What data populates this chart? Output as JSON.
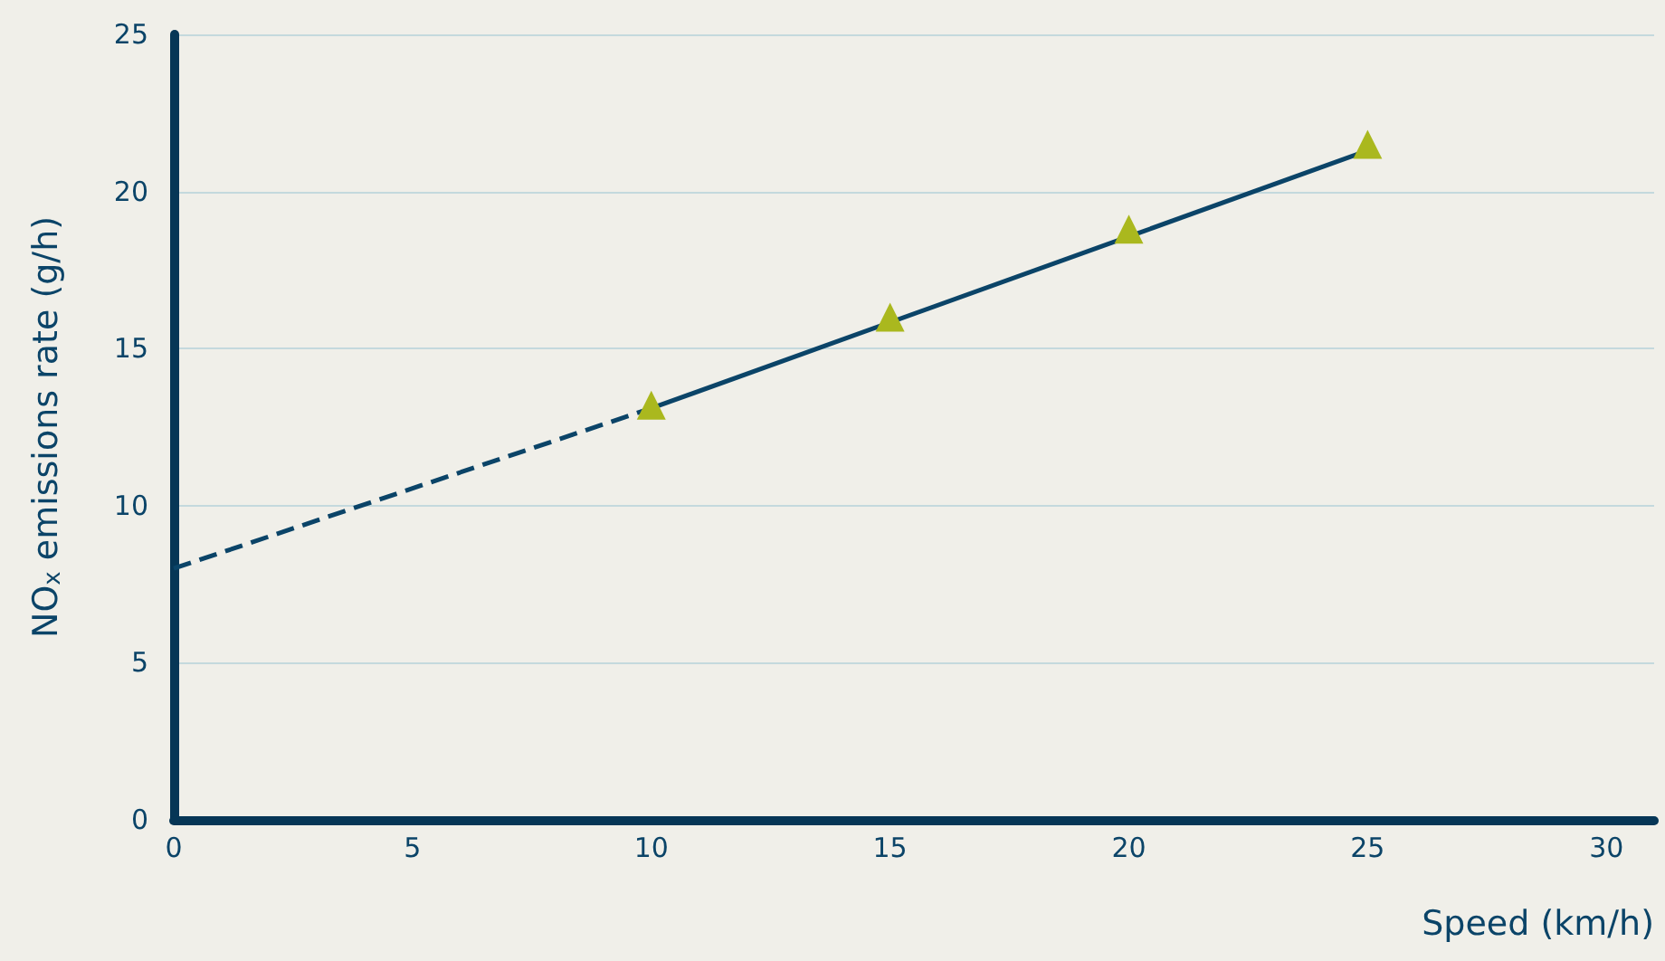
{
  "chart_data": {
    "type": "line",
    "xlabel": "Speed (km/h)",
    "ylabel": "NO$_{x}$ emissions rate (g/h)",
    "series": [
      {
        "x": [
          0,
          10
        ],
        "values": [
          8.0,
          13.1
        ],
        "color": "#0b4468",
        "line_style": "dashed",
        "marker": "none"
      },
      {
        "x": [
          10,
          25
        ],
        "values": [
          13.1,
          21.3
        ],
        "color": "#0b4468",
        "line_style": "solid",
        "marker": "none"
      },
      {
        "type": "scatter",
        "x": [
          10,
          15,
          20,
          25
        ],
        "values": [
          13.2,
          16.0,
          18.8,
          21.5
        ],
        "color": "#aab81e",
        "marker": "triangle"
      }
    ],
    "xlim": [
      0,
      31
    ],
    "xticks": [
      0,
      5,
      10,
      15,
      20,
      25,
      30
    ],
    "ylim": [
      0,
      25
    ],
    "yticks": [
      0,
      5,
      10,
      15,
      20,
      25
    ],
    "grid": "y"
  }
}
